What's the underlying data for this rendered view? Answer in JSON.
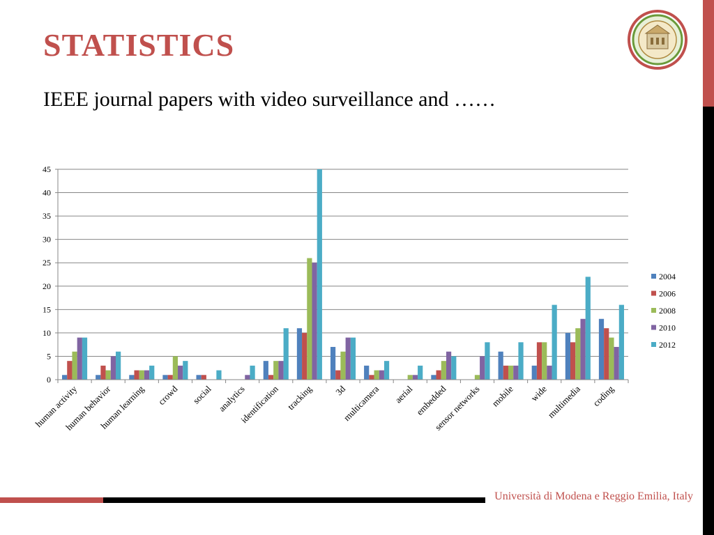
{
  "slide": {
    "title": "STATISTICS",
    "subtitle": "IEEE journal papers with video surveillance and ……",
    "footer": "Università di Modena e Reggio Emilia, Italy"
  },
  "colors": {
    "accent": "#c0504d",
    "bar": "#000000"
  },
  "chart_data": {
    "type": "bar",
    "categories": [
      "human activity",
      "human behavior",
      "human learning",
      "crowd",
      "social",
      "analytics",
      "identification",
      "tracking",
      "3d",
      "multicamera",
      "aerial",
      "embedded",
      "sensor networks",
      "mobile",
      "wide",
      "multimedia",
      "coding"
    ],
    "series": [
      {
        "name": "2004",
        "color": "#4f81bd",
        "values": [
          1,
          1,
          1,
          1,
          1,
          0,
          4,
          11,
          7,
          3,
          0,
          1,
          0,
          6,
          3,
          10,
          13
        ]
      },
      {
        "name": "2006",
        "color": "#c0504d",
        "values": [
          4,
          3,
          2,
          1,
          1,
          0,
          1,
          10,
          2,
          1,
          0,
          2,
          0,
          3,
          8,
          8,
          11
        ]
      },
      {
        "name": "2008",
        "color": "#9bbb59",
        "values": [
          6,
          2,
          2,
          5,
          0,
          0,
          4,
          26,
          6,
          2,
          1,
          4,
          1,
          3,
          8,
          11,
          9
        ]
      },
      {
        "name": "2010",
        "color": "#8064a2",
        "values": [
          9,
          5,
          2,
          3,
          0,
          1,
          4,
          25,
          9,
          2,
          1,
          6,
          5,
          3,
          3,
          13,
          7
        ]
      },
      {
        "name": "2012",
        "color": "#4bacc6",
        "values": [
          9,
          6,
          3,
          4,
          2,
          3,
          11,
          45,
          9,
          4,
          3,
          5,
          8,
          8,
          16,
          22,
          16
        ]
      }
    ],
    "yticks": [
      0,
      5,
      10,
      15,
      20,
      25,
      30,
      35,
      40,
      45
    ],
    "ylim": [
      0,
      45
    ],
    "grid": true,
    "legend": "right"
  }
}
